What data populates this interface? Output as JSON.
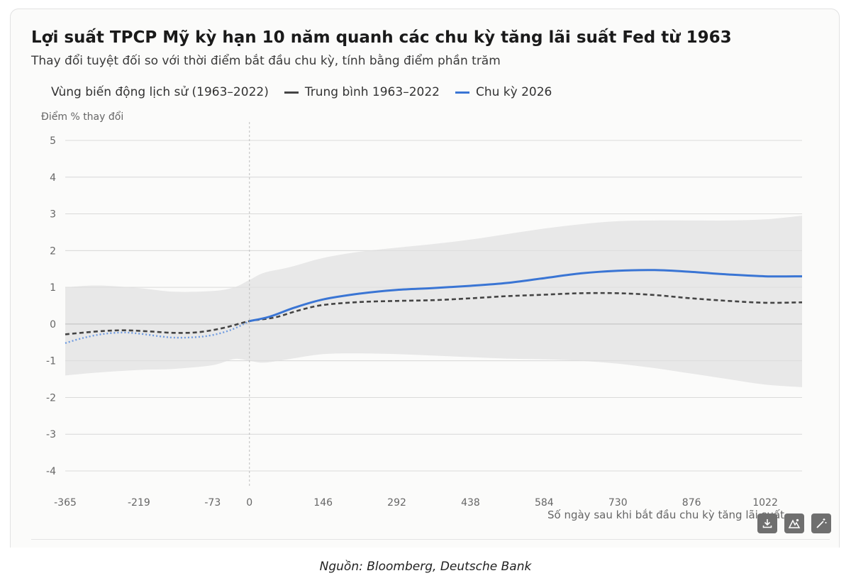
{
  "chart_data": {
    "type": "line",
    "title": "Lợi suất TPCP Mỹ kỳ hạn 10 năm quanh các chu kỳ tăng lãi suất Fed từ 1963",
    "subtitle": "Thay đổi tuyệt đối so với thời điểm bắt đầu chu kỳ, tính bằng điểm phần trăm",
    "ylabel": "Điểm % thay đổi",
    "xlabel": "Số ngày sau khi bắt đầu chu kỳ tăng lãi suất",
    "xlim": [
      -365,
      1095
    ],
    "ylim": [
      -4,
      5
    ],
    "x_ticks": [
      -365,
      -219,
      -73,
      0,
      146,
      292,
      438,
      584,
      730,
      876,
      1022
    ],
    "y_ticks": [
      5,
      4,
      3,
      2,
      1,
      0,
      -1,
      -2,
      -3,
      -4
    ],
    "grid": true,
    "legend": {
      "position": "top-left",
      "entries": [
        {
          "label": "Vùng biến động lịch sử (1963–2022)",
          "kind": "band",
          "color": "#e6e6e6"
        },
        {
          "label": "Trung bình 1963–2022",
          "kind": "dashed",
          "color": "#444444"
        },
        {
          "label": "Chu kỳ 2026",
          "kind": "solid",
          "color": "#3a75d4"
        }
      ]
    },
    "band": {
      "name": "Vùng biến động lịch sử (1963–2022)",
      "color": "#e6e6e6",
      "upper": [
        [
          -365,
          1.0
        ],
        [
          -300,
          1.05
        ],
        [
          -219,
          0.98
        ],
        [
          -150,
          0.88
        ],
        [
          -73,
          0.9
        ],
        [
          -30,
          1.0
        ],
        [
          0,
          1.2
        ],
        [
          30,
          1.4
        ],
        [
          80,
          1.55
        ],
        [
          146,
          1.8
        ],
        [
          219,
          1.97
        ],
        [
          292,
          2.08
        ],
        [
          365,
          2.18
        ],
        [
          438,
          2.3
        ],
        [
          511,
          2.45
        ],
        [
          584,
          2.6
        ],
        [
          657,
          2.72
        ],
        [
          730,
          2.8
        ],
        [
          803,
          2.82
        ],
        [
          876,
          2.82
        ],
        [
          949,
          2.82
        ],
        [
          1022,
          2.85
        ],
        [
          1095,
          2.95
        ]
      ],
      "lower": [
        [
          -365,
          -1.4
        ],
        [
          -300,
          -1.32
        ],
        [
          -219,
          -1.25
        ],
        [
          -150,
          -1.22
        ],
        [
          -73,
          -1.12
        ],
        [
          -30,
          -0.95
        ],
        [
          0,
          -1.0
        ],
        [
          30,
          -1.05
        ],
        [
          80,
          -0.95
        ],
        [
          146,
          -0.82
        ],
        [
          219,
          -0.8
        ],
        [
          292,
          -0.82
        ],
        [
          365,
          -0.86
        ],
        [
          438,
          -0.9
        ],
        [
          511,
          -0.94
        ],
        [
          584,
          -0.96
        ],
        [
          657,
          -1.0
        ],
        [
          730,
          -1.08
        ],
        [
          803,
          -1.2
        ],
        [
          876,
          -1.35
        ],
        [
          949,
          -1.5
        ],
        [
          1022,
          -1.65
        ],
        [
          1095,
          -1.72
        ]
      ]
    },
    "series": [
      {
        "name": "Trung bình 1963–2022",
        "color": "#444444",
        "style": "dashed",
        "points": [
          [
            -365,
            -0.28
          ],
          [
            -300,
            -0.2
          ],
          [
            -250,
            -0.17
          ],
          [
            -200,
            -0.2
          ],
          [
            -150,
            -0.24
          ],
          [
            -100,
            -0.22
          ],
          [
            -50,
            -0.1
          ],
          [
            0,
            0.08
          ],
          [
            50,
            0.18
          ],
          [
            100,
            0.38
          ],
          [
            146,
            0.52
          ],
          [
            219,
            0.6
          ],
          [
            292,
            0.63
          ],
          [
            365,
            0.65
          ],
          [
            438,
            0.7
          ],
          [
            511,
            0.76
          ],
          [
            584,
            0.8
          ],
          [
            657,
            0.84
          ],
          [
            730,
            0.84
          ],
          [
            803,
            0.79
          ],
          [
            876,
            0.7
          ],
          [
            949,
            0.63
          ],
          [
            1022,
            0.58
          ],
          [
            1095,
            0.59
          ]
        ]
      },
      {
        "name": "Chu kỳ 2026",
        "color": "#3a75d4",
        "style": "solid",
        "points_dotted": [
          [
            -365,
            -0.52
          ],
          [
            -330,
            -0.38
          ],
          [
            -290,
            -0.27
          ],
          [
            -250,
            -0.23
          ],
          [
            -219,
            -0.26
          ],
          [
            -180,
            -0.33
          ],
          [
            -150,
            -0.37
          ],
          [
            -110,
            -0.36
          ],
          [
            -73,
            -0.3
          ],
          [
            -35,
            -0.15
          ],
          [
            0,
            0.08
          ]
        ],
        "points": [
          [
            0,
            0.08
          ],
          [
            40,
            0.2
          ],
          [
            90,
            0.45
          ],
          [
            146,
            0.67
          ],
          [
            219,
            0.83
          ],
          [
            292,
            0.93
          ],
          [
            365,
            0.98
          ],
          [
            438,
            1.04
          ],
          [
            511,
            1.12
          ],
          [
            584,
            1.25
          ],
          [
            657,
            1.38
          ],
          [
            730,
            1.45
          ],
          [
            803,
            1.47
          ],
          [
            876,
            1.42
          ],
          [
            949,
            1.35
          ],
          [
            1022,
            1.3
          ],
          [
            1095,
            1.3
          ]
        ]
      }
    ]
  },
  "toolbar": {
    "icons": [
      "download-icon",
      "image-export-icon",
      "magic-icon"
    ]
  },
  "source": "Nguồn: Bloomberg, Deutsche Bank"
}
